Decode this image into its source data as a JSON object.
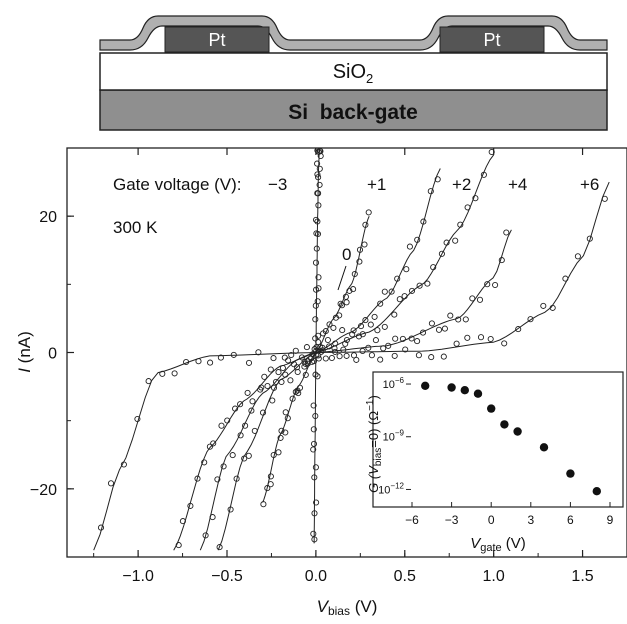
{
  "device": {
    "layers": [
      "SiO",
      "Si  back-gate"
    ],
    "sio2_subscript": "2",
    "electrodes": [
      "Pt",
      "Pt"
    ],
    "colors": {
      "metal": "#555555",
      "substrate": "#8f8f8f",
      "oxide": "#ffffff",
      "outline": "#222222",
      "film": "#b0b0b0"
    }
  },
  "chart_data": [
    {
      "type": "scatter",
      "title": "",
      "xlabel": {
        "main": "V",
        "sub": "bias",
        "unit": " (V)"
      },
      "ylabel": {
        "main": "I",
        "unit": " (nA)"
      },
      "xlim": [
        -1.4,
        1.75
      ],
      "ylim": [
        -30,
        30
      ],
      "xticks": [
        -1.0,
        -0.5,
        0.0,
        0.5,
        1.0,
        1.5
      ],
      "xtick_labels": [
        "−1.0",
        "−0.5",
        "0.0",
        "0.5",
        "1.0",
        "1.5"
      ],
      "yticks": [
        -20,
        0,
        20
      ],
      "ytick_labels": [
        "−20",
        "0",
        "20"
      ],
      "annotations": {
        "gate_label": "Gate voltage (V):",
        "temperature": "300 K",
        "zero_label": "0"
      },
      "series": [
        {
          "name": "−3",
          "g": 1e-06,
          "v0": 0.0,
          "x": [
            -0.01,
            -0.005,
            0.0,
            0.005,
            0.01,
            0.015,
            0.02
          ],
          "y": [
            -28,
            -14,
            0,
            10,
            20,
            27,
            30
          ]
        },
        {
          "name": "0",
          "g": 2.5e-07,
          "v0": 0.1,
          "x": [
            -0.3,
            -0.2,
            -0.1,
            0.0,
            0.1,
            0.2,
            0.3
          ],
          "y": [
            -22,
            -12,
            -5,
            0,
            5,
            10,
            20
          ]
        },
        {
          "name": "+1",
          "g": 1e-08,
          "v0": 0.18,
          "x": [
            -0.8,
            -0.6,
            -0.4,
            -0.2,
            0.0,
            0.2,
            0.4,
            0.55,
            0.7
          ],
          "y": [
            -29,
            -14,
            -7,
            -2,
            0,
            3,
            8,
            15,
            27
          ]
        },
        {
          "name": "+2",
          "g": 5e-09,
          "v0": 0.2,
          "x": [
            -0.65,
            -0.5,
            -0.3,
            -0.1,
            0.0,
            0.3,
            0.6,
            0.8,
            1.0
          ],
          "y": [
            -29,
            -15,
            -6,
            -1,
            0,
            3,
            10,
            18,
            29
          ]
        },
        {
          "name": "+4",
          "g": 3e-10,
          "v0": 0.2,
          "x": [
            -0.55,
            -0.4,
            -0.2,
            0.0,
            0.4,
            0.8,
            1.0,
            1.1
          ],
          "y": [
            -29,
            -15,
            -4,
            0,
            1,
            5,
            11,
            18
          ]
        },
        {
          "name": "+6",
          "g": 1e-12,
          "v0": 0.13,
          "x": [
            -1.25,
            -1.1,
            -0.9,
            -0.6,
            0.0,
            0.6,
            1.0,
            1.3,
            1.5,
            1.65
          ],
          "y": [
            -29,
            -17,
            -3,
            -0.5,
            0,
            0.2,
            1.5,
            6,
            14,
            25
          ]
        }
      ]
    },
    {
      "type": "scatter",
      "title": "",
      "xlabel": {
        "main": "V",
        "sub": "gate",
        "unit": " (V)"
      },
      "ylabel": {
        "main": "G",
        "paren": " (V",
        "sub": "bias",
        "rest": "=0) (Ω",
        "sup": "−1",
        "end": ")"
      },
      "xlim": [
        -6,
        9
      ],
      "ylim_log10": [
        -12.6,
        -5.6
      ],
      "log_y": true,
      "xticks": [
        -6,
        -3,
        0,
        3,
        6,
        9
      ],
      "xtick_labels": [
        "−6",
        "−3",
        "0",
        "3",
        "6",
        "9"
      ],
      "yticks_exp": [
        -6,
        -9,
        -12
      ],
      "ytick_base": "10",
      "ytick_exps": [
        "−6",
        "−9",
        "−12"
      ],
      "x": [
        -5,
        -3,
        -2,
        -1,
        0,
        1,
        2,
        4,
        6,
        8
      ],
      "y_log10": [
        -6.1,
        -6.2,
        -6.35,
        -6.55,
        -7.4,
        -8.3,
        -8.7,
        -9.6,
        -11.1,
        -12.1
      ]
    }
  ]
}
